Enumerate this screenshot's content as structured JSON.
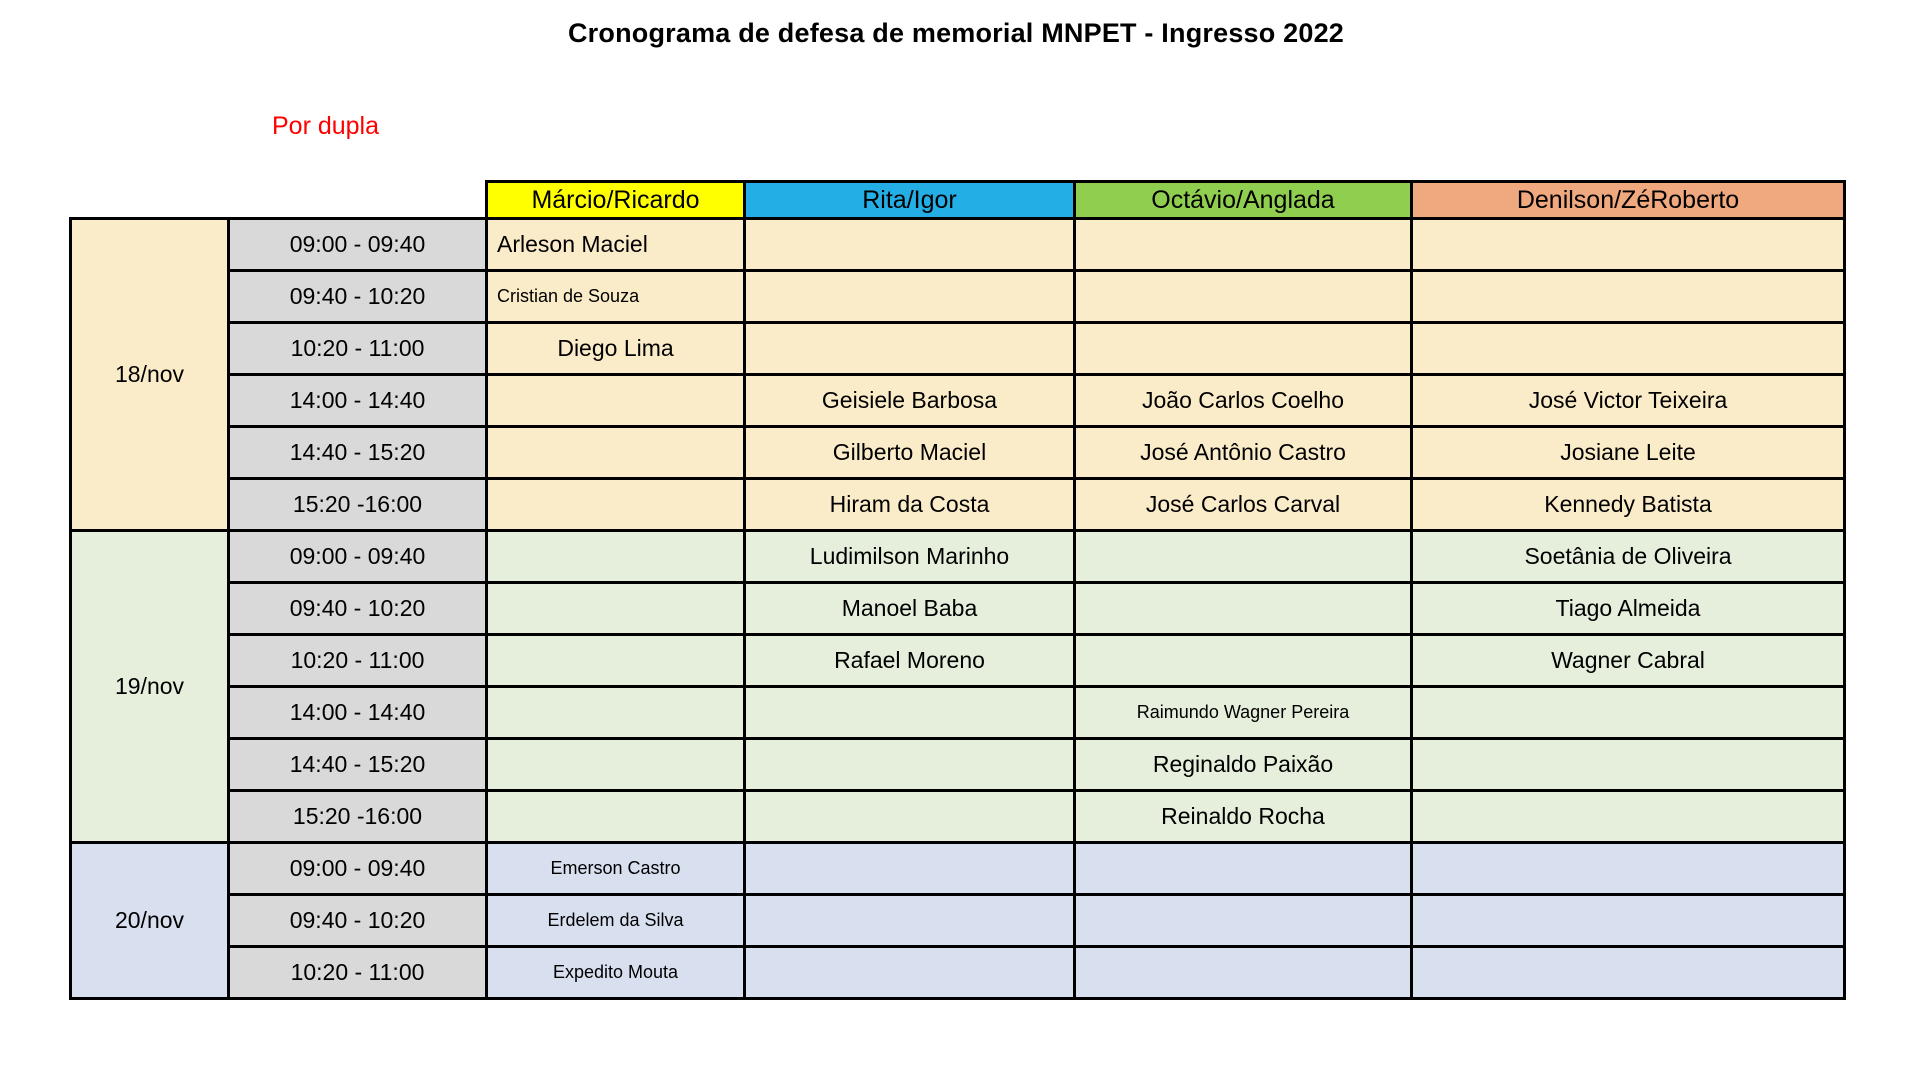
{
  "title": "Cronograma de defesa de memorial MNPET - Ingresso 2022",
  "legend": "Por dupla",
  "colors": {
    "legend_text": "#FF0000",
    "time_column": "#D9D9D9",
    "grid_border": "#000000"
  },
  "columns": [
    {
      "label": "Márcio/Ricardo",
      "color": "#FFFF00"
    },
    {
      "label": "Rita/Igor",
      "color": "#24AEE6"
    },
    {
      "label": "Octávio/Anglada",
      "color": "#8FCE4E"
    },
    {
      "label": "Denilson/ZéRoberto",
      "color": "#F0A87E"
    }
  ],
  "sections": [
    {
      "date": "18/nov",
      "color": "#FBECC9",
      "rows": [
        {
          "time": "09:00 - 09:40",
          "cells": [
            {
              "t": "Arleson Maciel",
              "align": "left"
            },
            {
              "t": ""
            },
            {
              "t": ""
            },
            {
              "t": ""
            }
          ]
        },
        {
          "time": "09:40 - 10:20",
          "cells": [
            {
              "t": "Cristian de Souza",
              "align": "left",
              "small": true
            },
            {
              "t": ""
            },
            {
              "t": ""
            },
            {
              "t": ""
            }
          ]
        },
        {
          "time": "10:20 - 11:00",
          "cells": [
            {
              "t": "Diego Lima"
            },
            {
              "t": ""
            },
            {
              "t": ""
            },
            {
              "t": ""
            }
          ]
        },
        {
          "time": "14:00 - 14:40",
          "cells": [
            {
              "t": ""
            },
            {
              "t": "Geisiele Barbosa"
            },
            {
              "t": "João Carlos Coelho"
            },
            {
              "t": "José Victor Teixeira"
            }
          ]
        },
        {
          "time": "14:40 - 15:20",
          "cells": [
            {
              "t": ""
            },
            {
              "t": "Gilberto Maciel"
            },
            {
              "t": "José Antônio Castro"
            },
            {
              "t": "Josiane Leite"
            }
          ]
        },
        {
          "time": "15:20 -16:00",
          "cells": [
            {
              "t": ""
            },
            {
              "t": "Hiram da Costa"
            },
            {
              "t": "José Carlos Carval"
            },
            {
              "t": "Kennedy Batista"
            }
          ]
        }
      ]
    },
    {
      "date": "19/nov",
      "color": "#E5EFDC",
      "rows": [
        {
          "time": "09:00 - 09:40",
          "cells": [
            {
              "t": ""
            },
            {
              "t": "Ludimilson Marinho"
            },
            {
              "t": ""
            },
            {
              "t": "Soetânia de Oliveira"
            }
          ]
        },
        {
          "time": "09:40 - 10:20",
          "cells": [
            {
              "t": ""
            },
            {
              "t": "Manoel Baba"
            },
            {
              "t": ""
            },
            {
              "t": "Tiago Almeida"
            }
          ]
        },
        {
          "time": "10:20 - 11:00",
          "cells": [
            {
              "t": ""
            },
            {
              "t": "Rafael Moreno"
            },
            {
              "t": ""
            },
            {
              "t": "Wagner Cabral"
            }
          ]
        },
        {
          "time": "14:00 - 14:40",
          "cells": [
            {
              "t": ""
            },
            {
              "t": ""
            },
            {
              "t": "Raimundo Wagner Pereira",
              "small": true
            },
            {
              "t": ""
            }
          ]
        },
        {
          "time": "14:40 - 15:20",
          "cells": [
            {
              "t": ""
            },
            {
              "t": ""
            },
            {
              "t": "Reginaldo Paixão"
            },
            {
              "t": ""
            }
          ]
        },
        {
          "time": "15:20 -16:00",
          "cells": [
            {
              "t": ""
            },
            {
              "t": ""
            },
            {
              "t": "Reinaldo Rocha"
            },
            {
              "t": ""
            }
          ]
        }
      ]
    },
    {
      "date": "20/nov",
      "color": "#D8E0F0",
      "rows": [
        {
          "time": "09:00 - 09:40",
          "cells": [
            {
              "t": "Emerson Castro",
              "small": true
            },
            {
              "t": ""
            },
            {
              "t": ""
            },
            {
              "t": ""
            }
          ]
        },
        {
          "time": "09:40 - 10:20",
          "cells": [
            {
              "t": "Erdelem da Silva",
              "small": true
            },
            {
              "t": ""
            },
            {
              "t": ""
            },
            {
              "t": ""
            }
          ]
        },
        {
          "time": "10:20 - 11:00",
          "cells": [
            {
              "t": "Expedito Mouta",
              "small": true
            },
            {
              "t": ""
            },
            {
              "t": ""
            },
            {
              "t": ""
            }
          ]
        }
      ]
    }
  ]
}
